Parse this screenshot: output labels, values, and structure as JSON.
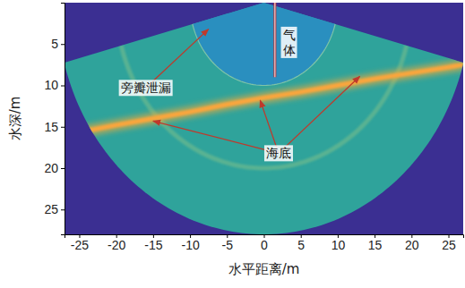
{
  "chart_data": {
    "type": "sonar_image",
    "xlabel": "水平距离/m",
    "ylabel": "水深/m",
    "xlim": [
      -27,
      27
    ],
    "ylim": [
      0,
      28
    ],
    "xticks": [
      -25,
      -20,
      -15,
      -10,
      -5,
      0,
      5,
      10,
      15,
      20,
      25
    ],
    "yticks": [
      5,
      10,
      15,
      20,
      25
    ],
    "range": 28,
    "sector_angle": 150,
    "near_field_radius": 10,
    "sidelobe_radius": 20,
    "seabed_x": [
      -27,
      -20,
      -15,
      -10,
      -5,
      0,
      5,
      10,
      15,
      20,
      25,
      27
    ],
    "seabed_y": [
      16,
      14.8,
      14,
      13.2,
      12.3,
      11.5,
      10.8,
      10,
      9.2,
      8.5,
      7.8,
      7.5
    ],
    "gas_x": 1.5,
    "gas_y": [
      0,
      9
    ],
    "annotations": [
      {
        "text": "气体",
        "x": 3.4,
        "y": 4.8,
        "arrows": []
      },
      {
        "text": "旁瓣泄漏",
        "x": -16,
        "y": 10.3,
        "arrows": [
          [
            -7.5,
            3.2
          ]
        ]
      },
      {
        "text": "海底",
        "x": 2,
        "y": 18.2,
        "arrows": [
          [
            -15,
            14.3
          ],
          [
            -0.5,
            11.8
          ],
          [
            13,
            8.9
          ]
        ]
      }
    ]
  }
}
